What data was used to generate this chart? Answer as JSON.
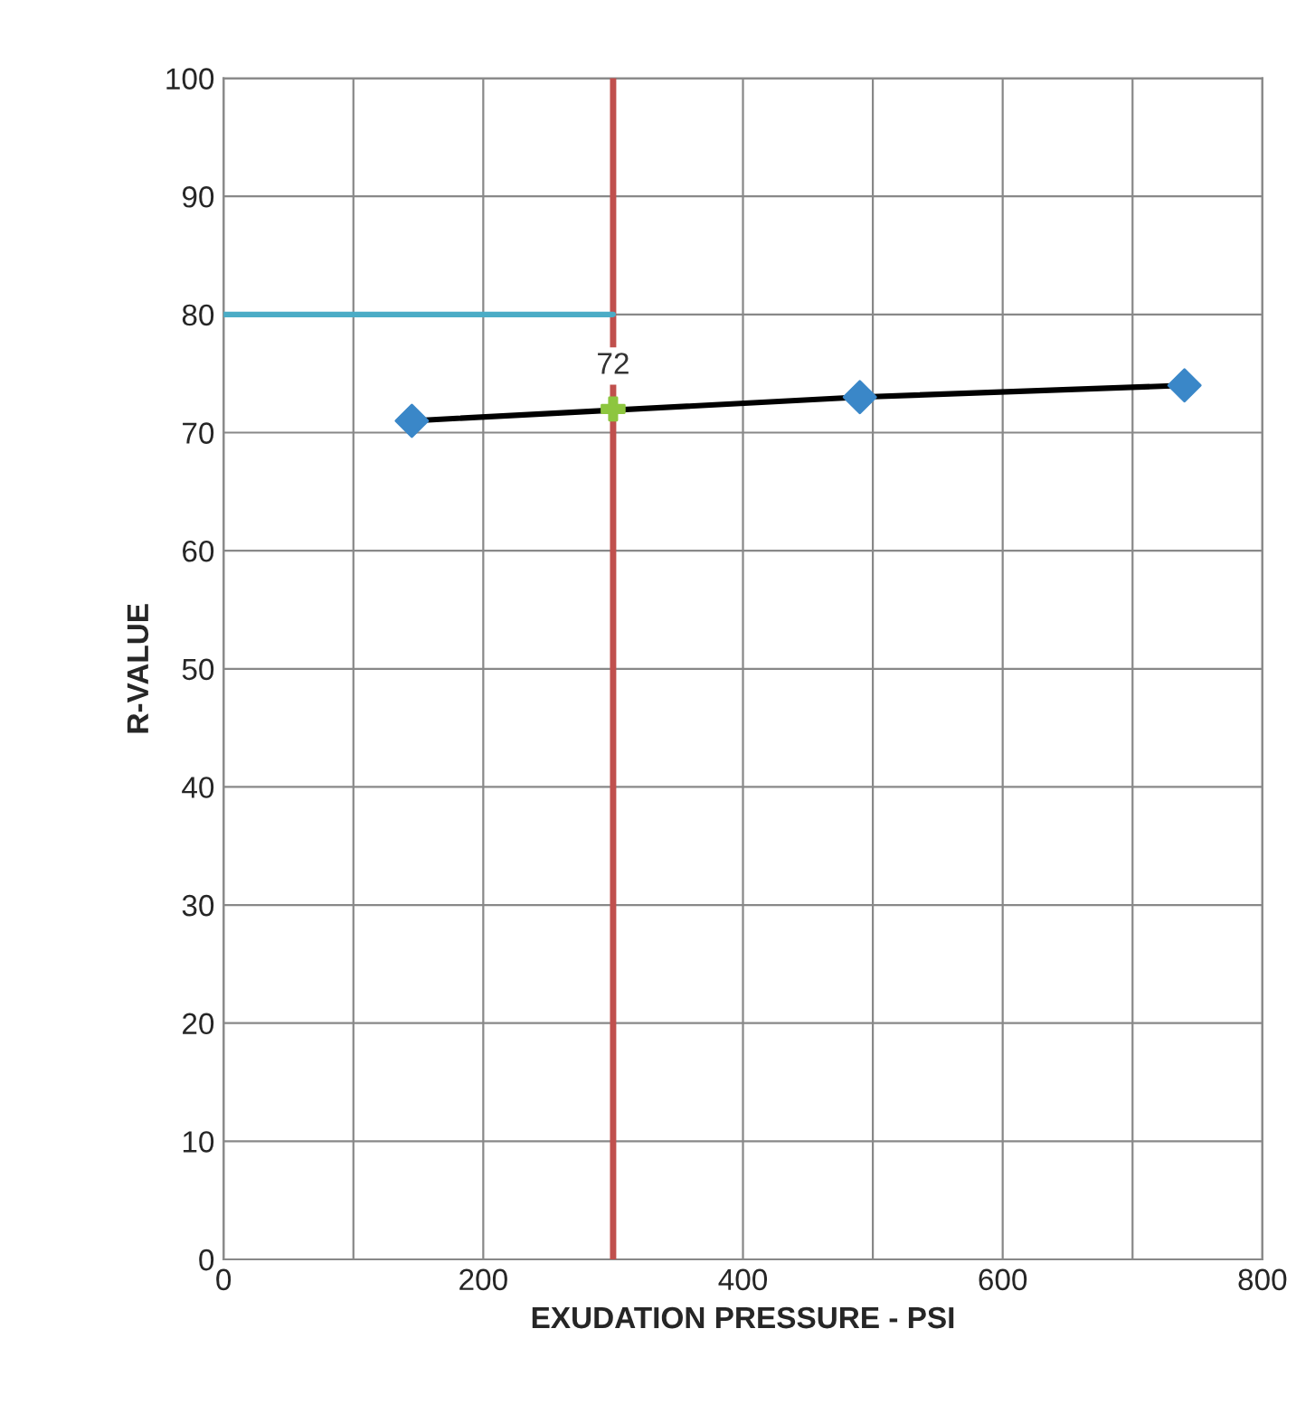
{
  "chart_data": {
    "type": "line",
    "xlabel": "EXUDATION PRESSURE - PSI",
    "ylabel": "R-VALUE",
    "xlim": [
      0,
      800
    ],
    "ylim": [
      0,
      100
    ],
    "xticks": [
      0,
      {
        "value": 100,
        "label": null
      },
      200,
      {
        "value": 300,
        "label": null
      },
      400,
      {
        "value": 500,
        "label": null
      },
      600,
      {
        "value": 700,
        "label": null
      },
      800
    ],
    "yticks": [
      0,
      10,
      20,
      30,
      40,
      50,
      60,
      70,
      80,
      90,
      100
    ],
    "grid": true,
    "legend": false,
    "series": [
      {
        "color": "#000000",
        "colors": [
          "#3a87c8",
          "#3a87c8",
          "#3a87c8"
        ],
        "marker": "diamond",
        "x": [
          145,
          490,
          740
        ],
        "values": [
          71,
          73,
          74
        ]
      },
      {
        "color": "#4bacc6",
        "marker": "none",
        "x": [
          0,
          300
        ],
        "values": [
          80,
          80
        ]
      },
      {
        "type": "scatter",
        "color": "#8dc63f",
        "marker": "cross",
        "x": [
          300
        ],
        "values": [
          72
        ],
        "value_labels": [
          "72"
        ]
      }
    ],
    "ref_lines": [
      {
        "axis": "x",
        "value": 300,
        "color": "#c0504d"
      }
    ]
  }
}
